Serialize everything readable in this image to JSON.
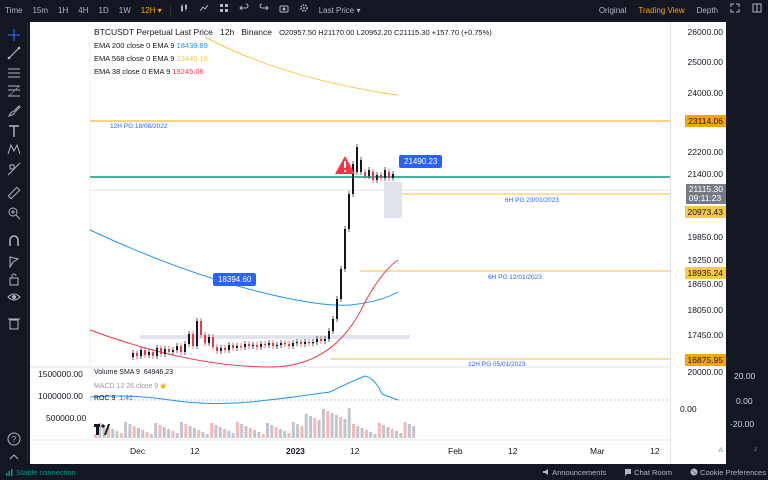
{
  "topbar": {
    "items": [
      "Time",
      "15m",
      "1H",
      "4H",
      "1D",
      "1W",
      "12H"
    ],
    "active_interval": "12H",
    "price_type": "Last Price",
    "views": [
      "Original",
      "Trading View",
      "Depth"
    ],
    "active_view": "Trading View"
  },
  "legend": {
    "symbol": "BTCUSDT Perpetual Last Price",
    "interval": "12h",
    "exchange": "Binance",
    "ohlc": "O20957.50 H21170.00 L20952.20 C21115.30 +157.70 (+0.75%)",
    "ema200_label": "EMA 200 close 0 EMA 9",
    "ema200_value": "18439.89",
    "ema568_label": "EMA 568 close 0 EMA 9",
    "ema568_value": "23440.16",
    "ema38_label": "EMA 38 close 0 EMA 9",
    "ema38_value": "19245.06"
  },
  "colors": {
    "ema200": "#2196f3",
    "ema568": "#f7c945",
    "ema38": "#f23645",
    "bull": "#131722",
    "bear": "#f23645",
    "hline_orange": "#f7a600",
    "hline_green": "#089981"
  },
  "price_scale": {
    "ticks": [
      "26000.00",
      "25000.00",
      "24000.00",
      "23114.06",
      "22200.00",
      "21400.00",
      "21115.30",
      "09:11:23",
      "20973.43",
      "19850.00",
      "19250.00",
      "18935.24",
      "18650.00",
      "18050.00",
      "17450.00",
      "16875.95",
      "20000.00"
    ]
  },
  "annotations": {
    "pg_12h_aug": "12H PG 18/08/2022",
    "pg_6h_jan23": "6H PG 23/01/2023",
    "pg_6h_jan12": "6H PG 12/01/2023",
    "pg_12h_jan05": "12H PG 05/01/2023",
    "high_badge": "21490.23",
    "low_badge": "18394.60"
  },
  "indicators": {
    "volume_label": "Volume SMA 9",
    "volume_value": "64946.23",
    "macd_label": "MACD 12 26 close 9",
    "roc_label": "ROC 9",
    "roc_value": "1.41",
    "volume_ticks": [
      "1500000.00",
      "1000000.00",
      "500000.00"
    ],
    "macd_ticks": [
      "20.00",
      "0.00",
      "0.00",
      "-20.00"
    ]
  },
  "time_axis": {
    "labels": [
      "Dec",
      "12",
      "2023",
      "12",
      "Feb",
      "12",
      "Mar",
      "12"
    ]
  },
  "bottombar": {
    "status": "Stable connection",
    "announcements": "Announcements",
    "chat_room": "Chat Room",
    "cookie": "Cookie Preferences"
  }
}
